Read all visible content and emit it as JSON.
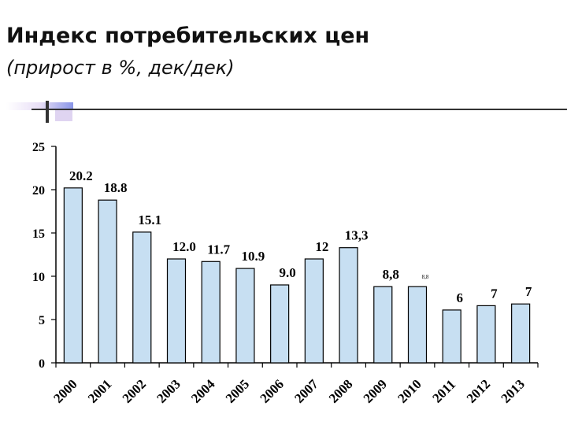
{
  "title": "Индекс потребительских цен",
  "subtitle": "(прирост в %, дек/дек)",
  "colors": {
    "bar_fill": "#c7dff2",
    "bar_stroke": "#000000",
    "decor_bar": "#3b4fd8",
    "decor_fade": "#c9b8e8"
  },
  "chart_data": {
    "type": "bar",
    "categories": [
      "2000",
      "2001",
      "2002",
      "2003",
      "2004",
      "2005",
      "2006",
      "2007",
      "2008",
      "2009",
      "2010",
      "2011",
      "2012",
      "2013"
    ],
    "values": [
      20.2,
      18.8,
      15.1,
      12.0,
      11.7,
      10.9,
      9.0,
      12.0,
      13.3,
      8.8,
      8.8,
      6.1,
      6.6,
      6.8
    ],
    "data_labels": [
      "20.2",
      "18.8",
      "15.1",
      "12.0",
      "11.7",
      "10.9",
      "9.0",
      "12",
      "13,3",
      "8,8",
      "8,8",
      "6",
      "7",
      "7"
    ],
    "yticks": [
      "0",
      "5",
      "10",
      "15",
      "20",
      "25"
    ],
    "ylim": [
      0,
      25
    ],
    "grid": false,
    "legend": "none"
  }
}
